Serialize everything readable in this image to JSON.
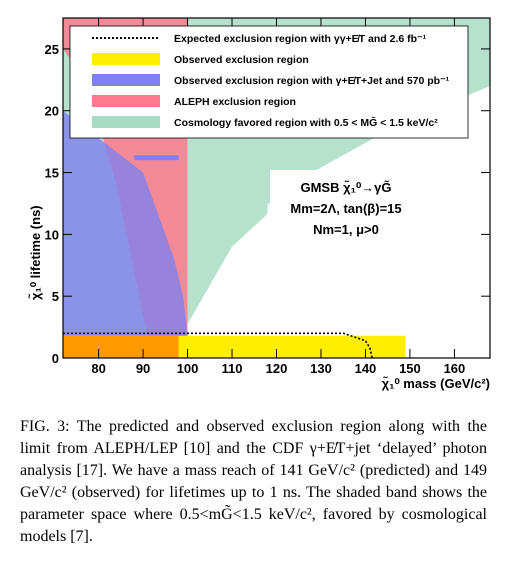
{
  "chart_data": {
    "type": "area",
    "xlabel": "χ̃₁⁰ mass (GeV/c²)",
    "ylabel": "χ̃₁⁰ lifetime (ns)",
    "xlim": [
      72,
      168
    ],
    "ylim": [
      0,
      27.5
    ],
    "x_ticks": [
      80,
      90,
      100,
      110,
      120,
      130,
      140,
      150,
      160
    ],
    "y_ticks": [
      0,
      5,
      10,
      15,
      20,
      25
    ],
    "grid": false,
    "legend_position": "top",
    "legend": [
      {
        "key": "expected",
        "label": "Expected exclusion region with γγ+E̸T and 2.6 fb⁻¹",
        "color": "#000000",
        "style": "dotted-line"
      },
      {
        "key": "observed",
        "label": "Observed exclusion region",
        "color": "#ffee00",
        "style": "fill"
      },
      {
        "key": "jet",
        "label": "Observed exclusion region with γ+E̸T+Jet and 570 pb⁻¹",
        "color": "#8080ee",
        "style": "fill"
      },
      {
        "key": "aleph",
        "label": "ALEPH exclusion region",
        "color": "#ff7a8e",
        "style": "fill"
      },
      {
        "key": "cosmo",
        "label": "Cosmology favored region with 0.5 < MG̃ < 1.5 keV/c²",
        "color": "#a8dcc4",
        "style": "fill"
      }
    ],
    "series": [
      {
        "name": "Expected exclusion region with γγ+E̸T and 2.6 fb⁻¹",
        "x": [
          72,
          100,
          135,
          140,
          141,
          141.5
        ],
        "y": [
          2.0,
          2.0,
          2.0,
          1.4,
          0.8,
          0
        ]
      },
      {
        "name": "Observed exclusion region",
        "x": [
          72,
          149,
          149
        ],
        "y": [
          1.8,
          1.8,
          0
        ]
      },
      {
        "name": "Observed exclusion region with γ+E̸T+Jet and 570 pb⁻¹",
        "x": [
          72,
          90,
          94,
          97,
          99,
          100,
          100,
          72
        ],
        "y": [
          20,
          15,
          11,
          8,
          5,
          2,
          0,
          0
        ]
      },
      {
        "name": "ALEPH exclusion region",
        "x": [
          72,
          100,
          100,
          92,
          88,
          84,
          80,
          76,
          72
        ],
        "y": [
          27.5,
          27.5,
          0,
          0,
          7,
          14,
          19,
          23,
          25
        ]
      },
      {
        "name": "Cosmology favored region with 0.5 < MG̃ < 1.5 keV/c²",
        "x": [
          72,
          168,
          168,
          148,
          128,
          110,
          98,
          72
        ],
        "y": [
          27.5,
          27.5,
          22,
          19,
          15,
          9,
          1.5,
          1.5
        ]
      }
    ],
    "annotation": {
      "line1": "GMSB χ̃₁⁰→γG̃",
      "line2": "Mm=2Λ, tan(β)=15",
      "line3": "Nm=1, μ>0"
    }
  },
  "caption": {
    "label": "FIG. 3:",
    "text": "The predicted and observed exclusion region along with the limit from ALEPH/LEP [10] and the CDF γ+E̸T+jet ‘delayed’ photon analysis [17]. We have a mass reach of 141 GeV/c² (predicted) and 149 GeV/c² (observed) for lifetimes up to 1 ns. The shaded band shows the parameter space where 0.5<mG̃<1.5 keV/c², favored by cosmological models [7]."
  }
}
